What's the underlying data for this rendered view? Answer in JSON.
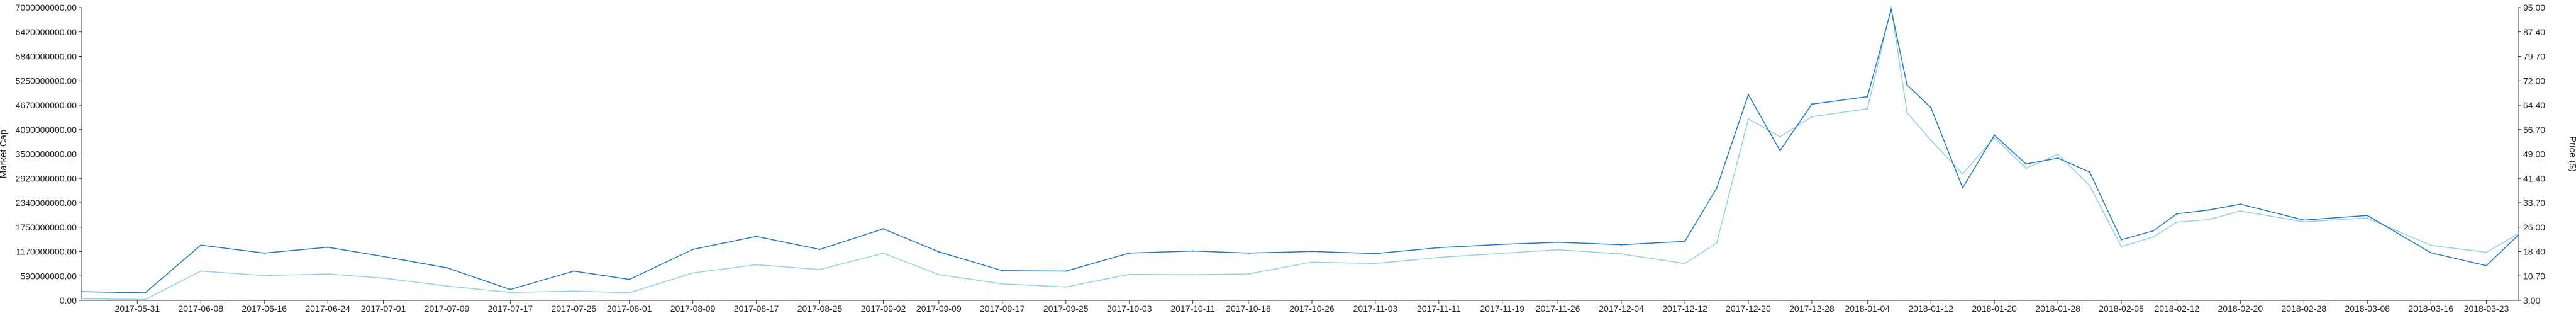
{
  "chart_data": {
    "type": "line",
    "title": "",
    "x": [
      "2017-05-24",
      "2017-06-01",
      "2017-06-08",
      "2017-06-16",
      "2017-06-24",
      "2017-07-01",
      "2017-07-09",
      "2017-07-17",
      "2017-07-25",
      "2017-08-01",
      "2017-08-09",
      "2017-08-17",
      "2017-08-25",
      "2017-09-02",
      "2017-09-09",
      "2017-09-17",
      "2017-09-25",
      "2017-10-03",
      "2017-10-11",
      "2017-10-18",
      "2017-10-26",
      "2017-11-03",
      "2017-11-11",
      "2017-11-19",
      "2017-11-26",
      "2017-12-04",
      "2017-12-12",
      "2017-12-16",
      "2017-12-20",
      "2017-12-24",
      "2017-12-28",
      "2018-01-04",
      "2018-01-07",
      "2018-01-09",
      "2018-01-12",
      "2018-01-16",
      "2018-01-20",
      "2018-01-24",
      "2018-01-28",
      "2018-02-01",
      "2018-02-05",
      "2018-02-09",
      "2018-02-12",
      "2018-02-16",
      "2018-02-20",
      "2018-02-28",
      "2018-03-08",
      "2018-03-16",
      "2018-03-23",
      "2018-03-27"
    ],
    "series": [
      {
        "color": "#1f78c8",
        "axis": "left",
        "values": [
          210000000,
          180000000,
          1320000000,
          1130000000,
          1270000000,
          1050000000,
          780000000,
          260000000,
          700000000,
          500000000,
          1220000000,
          1530000000,
          1220000000,
          1710000000,
          1160000000,
          710000000,
          700000000,
          1130000000,
          1180000000,
          1130000000,
          1170000000,
          1120000000,
          1260000000,
          1340000000,
          1390000000,
          1330000000,
          1410000000,
          2680000000,
          4920000000,
          3580000000,
          4690000000,
          4870000000,
          6950000000,
          5150000000,
          4610000000,
          2690000000,
          3950000000,
          3260000000,
          3400000000,
          3070000000,
          1450000000,
          1660000000,
          2070000000,
          2160000000,
          2300000000,
          1920000000,
          2030000000,
          1140000000,
          830000000,
          1560000000
        ]
      },
      {
        "color": "#93d0ea",
        "axis": "right",
        "values": [
          3.5,
          3.3,
          12.2,
          10.8,
          11.3,
          10.0,
          7.5,
          5.5,
          5.9,
          5.4,
          11.6,
          14.2,
          12.7,
          17.8,
          11.1,
          8.2,
          7.2,
          11.2,
          11.1,
          11.3,
          15.0,
          14.6,
          16.5,
          17.8,
          18.9,
          17.6,
          14.6,
          21.0,
          60.0,
          54.4,
          60.7,
          63.2,
          95.0,
          62.0,
          53.3,
          42.7,
          54.1,
          44.5,
          48.9,
          39.1,
          19.9,
          22.9,
          27.6,
          28.4,
          31.1,
          27.7,
          28.9,
          20.3,
          18.1,
          23.9
        ]
      }
    ],
    "x_tick_labels": [
      "2017-05-31",
      "2017-06-08",
      "2017-06-16",
      "2017-06-24",
      "2017-07-01",
      "2017-07-09",
      "2017-07-17",
      "2017-07-25",
      "2017-08-01",
      "2017-08-09",
      "2017-08-17",
      "2017-08-25",
      "2017-09-02",
      "2017-09-09",
      "2017-09-17",
      "2017-09-25",
      "2017-10-03",
      "2017-10-11",
      "2017-10-18",
      "2017-10-26",
      "2017-11-03",
      "2017-11-11",
      "2017-11-19",
      "2017-11-26",
      "2017-12-04",
      "2017-12-12",
      "2017-12-20",
      "2017-12-28",
      "2018-01-04",
      "2018-01-12",
      "2018-01-20",
      "2018-01-28",
      "2018-02-05",
      "2018-02-12",
      "2018-02-20",
      "2018-02-28",
      "2018-03-08",
      "2018-03-16",
      "2018-03-23"
    ],
    "y_left_tick_labels": [
      "0.00",
      "590000000.00",
      "1170000000.00",
      "1750000000.00",
      "2340000000.00",
      "2920000000.00",
      "3500000000.00",
      "4090000000.00",
      "4670000000.00",
      "5250000000.00",
      "5840000000.00",
      "6420000000.00",
      "7000000000.00"
    ],
    "y_right_tick_labels": [
      "3.00",
      "10.70",
      "18.40",
      "26.00",
      "33.70",
      "41.40",
      "49.00",
      "56.70",
      "64.40",
      "72.00",
      "79.70",
      "87.40",
      "95.00"
    ],
    "ylabel_left": "Market Cap",
    "ylabel_right": "Price ($)",
    "ylim_left": [
      0,
      7000000000
    ],
    "ylim_right": [
      3,
      95
    ],
    "grid": false,
    "legend": "none"
  }
}
